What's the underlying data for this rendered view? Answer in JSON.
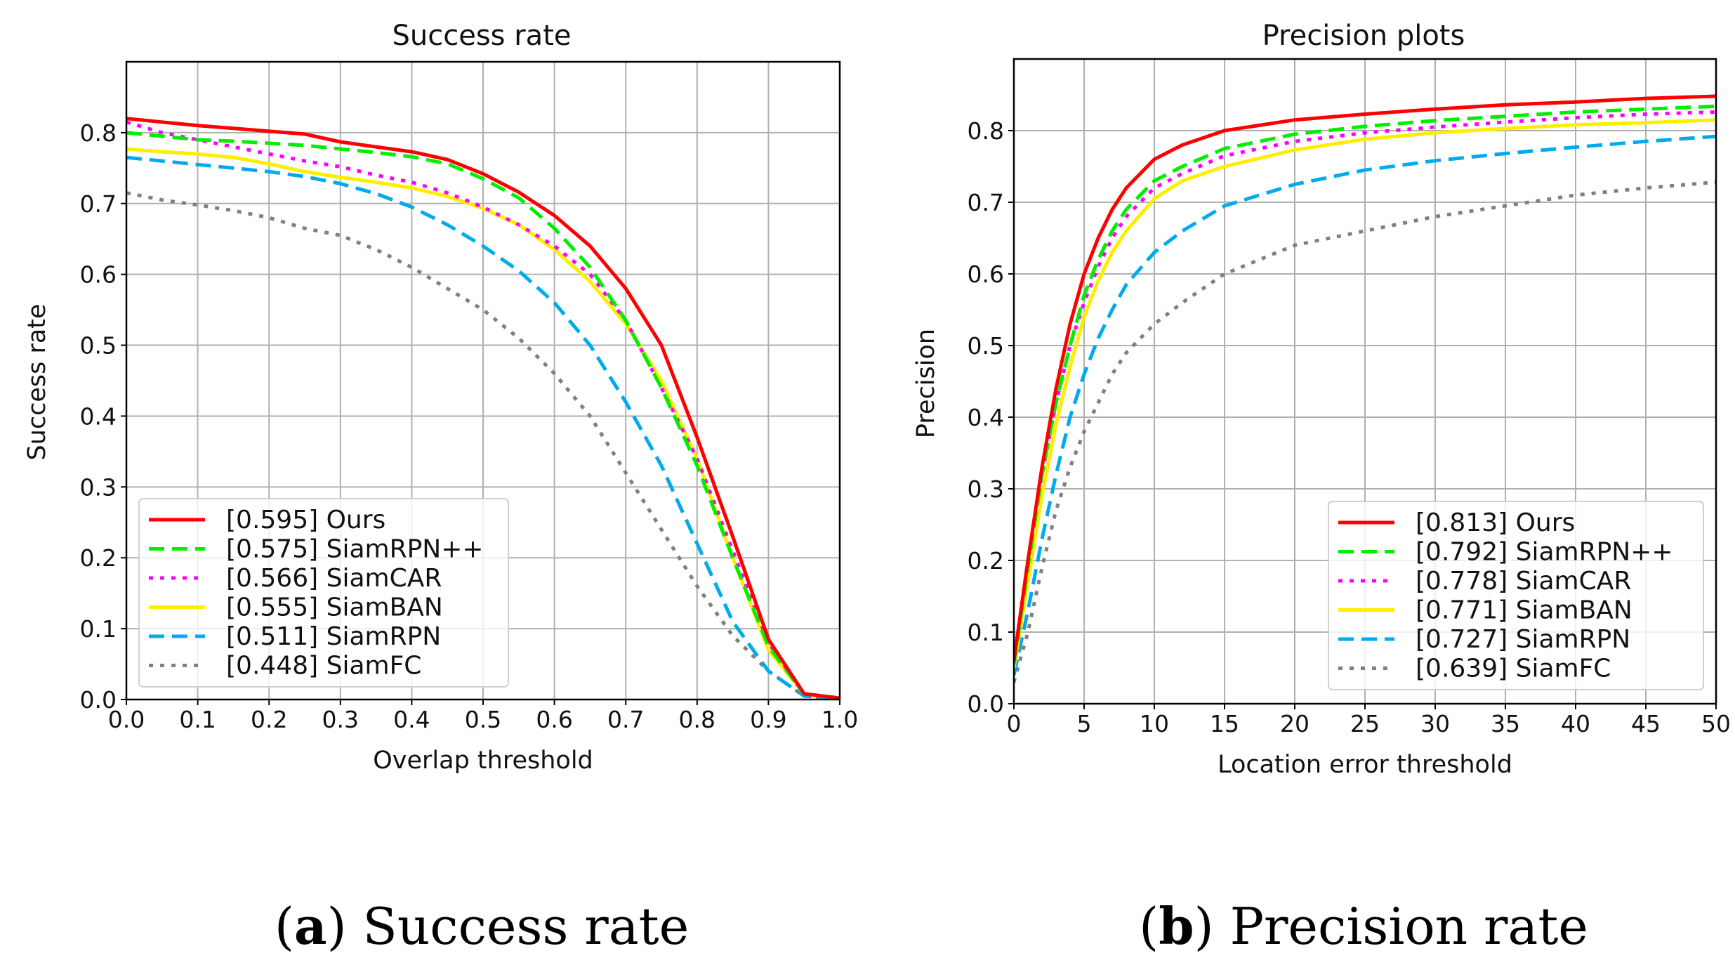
{
  "chart_data": [
    {
      "type": "line",
      "title": "Success rate",
      "xlabel": "Overlap threshold",
      "ylabel": "Success rate",
      "caption_letter": "a",
      "caption_text": "Success rate",
      "xlim": [
        0,
        1
      ],
      "ylim": [
        0,
        0.9
      ],
      "xticks": [
        "0.0",
        "0.1",
        "0.2",
        "0.3",
        "0.4",
        "0.5",
        "0.6",
        "0.7",
        "0.8",
        "0.9",
        "1.0"
      ],
      "yticks": [
        "0.0",
        "0.1",
        "0.2",
        "0.3",
        "0.4",
        "0.5",
        "0.6",
        "0.7",
        "0.8"
      ],
      "grid": true,
      "legend_position": "lower-left",
      "x": [
        0,
        0.05,
        0.1,
        0.15,
        0.2,
        0.25,
        0.3,
        0.35,
        0.4,
        0.45,
        0.5,
        0.55,
        0.6,
        0.65,
        0.7,
        0.75,
        0.8,
        0.85,
        0.9,
        0.95,
        1.0
      ],
      "series": [
        {
          "name": "[0.595] Ours",
          "color": "#ff0000",
          "style": "solid",
          "values": [
            0.82,
            0.815,
            0.81,
            0.806,
            0.802,
            0.798,
            0.787,
            0.78,
            0.773,
            0.762,
            0.742,
            0.716,
            0.683,
            0.64,
            0.58,
            0.5,
            0.37,
            0.23,
            0.085,
            0.008,
            0.002
          ]
        },
        {
          "name": "[0.575] SiamRPN++",
          "color": "#00ee00",
          "style": "dashed",
          "values": [
            0.8,
            0.795,
            0.79,
            0.788,
            0.785,
            0.782,
            0.777,
            0.772,
            0.766,
            0.756,
            0.735,
            0.708,
            0.665,
            0.61,
            0.535,
            0.44,
            0.33,
            0.2,
            0.075,
            0.008,
            0.002
          ]
        },
        {
          "name": "[0.566] SiamCAR",
          "color": "#ff00ff",
          "style": "dotted",
          "values": [
            0.815,
            0.8,
            0.79,
            0.78,
            0.77,
            0.76,
            0.752,
            0.74,
            0.73,
            0.715,
            0.695,
            0.67,
            0.64,
            0.6,
            0.535,
            0.44,
            0.34,
            0.21,
            0.08,
            0.008,
            0.002
          ]
        },
        {
          "name": "[0.555] SiamBAN",
          "color": "#ffee00",
          "style": "solid",
          "values": [
            0.777,
            0.773,
            0.77,
            0.765,
            0.756,
            0.745,
            0.737,
            0.73,
            0.722,
            0.71,
            0.693,
            0.67,
            0.635,
            0.59,
            0.53,
            0.45,
            0.34,
            0.2,
            0.07,
            0.008,
            0.002
          ]
        },
        {
          "name": "[0.511] SiamRPN",
          "color": "#00aaee",
          "style": "dashed",
          "values": [
            0.765,
            0.76,
            0.755,
            0.75,
            0.745,
            0.738,
            0.728,
            0.714,
            0.695,
            0.67,
            0.64,
            0.605,
            0.56,
            0.5,
            0.42,
            0.33,
            0.22,
            0.11,
            0.04,
            0.005,
            0.001
          ]
        },
        {
          "name": "[0.448] SiamFC",
          "color": "#808080",
          "style": "dotted",
          "values": [
            0.715,
            0.705,
            0.698,
            0.69,
            0.68,
            0.665,
            0.655,
            0.635,
            0.61,
            0.58,
            0.55,
            0.51,
            0.46,
            0.4,
            0.32,
            0.24,
            0.16,
            0.09,
            0.04,
            0.005,
            0.001
          ]
        }
      ]
    },
    {
      "type": "line",
      "title": "Precision plots",
      "xlabel": "Location error threshold",
      "ylabel": "Precision",
      "caption_letter": "b",
      "caption_text": "Precision rate",
      "xlim": [
        0,
        50
      ],
      "ylim": [
        0,
        0.9
      ],
      "xticks": [
        "0",
        "5",
        "10",
        "15",
        "20",
        "25",
        "30",
        "35",
        "40",
        "45",
        "50"
      ],
      "yticks": [
        "0.0",
        "0.1",
        "0.2",
        "0.3",
        "0.4",
        "0.5",
        "0.6",
        "0.7",
        "0.8"
      ],
      "grid": true,
      "legend_position": "lower-right",
      "x": [
        0,
        1,
        2,
        3,
        4,
        5,
        6,
        7,
        8,
        10,
        12,
        15,
        20,
        25,
        30,
        35,
        40,
        45,
        50
      ],
      "series": [
        {
          "name": "[0.813] Ours",
          "color": "#ff0000",
          "style": "solid",
          "values": [
            0.06,
            0.2,
            0.33,
            0.44,
            0.53,
            0.6,
            0.65,
            0.69,
            0.72,
            0.76,
            0.78,
            0.8,
            0.815,
            0.823,
            0.83,
            0.836,
            0.84,
            0.845,
            0.848
          ]
        },
        {
          "name": "[0.792] SiamRPN++",
          "color": "#00ee00",
          "style": "dashed",
          "values": [
            0.055,
            0.19,
            0.32,
            0.42,
            0.5,
            0.57,
            0.62,
            0.66,
            0.69,
            0.73,
            0.75,
            0.775,
            0.795,
            0.806,
            0.814,
            0.82,
            0.826,
            0.83,
            0.834
          ]
        },
        {
          "name": "[0.778] SiamCAR",
          "color": "#ff00ff",
          "style": "dotted",
          "values": [
            0.06,
            0.2,
            0.32,
            0.42,
            0.5,
            0.56,
            0.61,
            0.65,
            0.68,
            0.72,
            0.74,
            0.765,
            0.785,
            0.797,
            0.805,
            0.812,
            0.818,
            0.823,
            0.826
          ]
        },
        {
          "name": "[0.771] SiamBAN",
          "color": "#ffee00",
          "style": "solid",
          "values": [
            0.05,
            0.17,
            0.29,
            0.39,
            0.47,
            0.54,
            0.59,
            0.63,
            0.66,
            0.705,
            0.73,
            0.75,
            0.773,
            0.788,
            0.797,
            0.803,
            0.808,
            0.811,
            0.815
          ]
        },
        {
          "name": "[0.727] SiamRPN",
          "color": "#00aaee",
          "style": "dashed",
          "values": [
            0.04,
            0.13,
            0.23,
            0.32,
            0.4,
            0.46,
            0.51,
            0.55,
            0.585,
            0.63,
            0.66,
            0.695,
            0.725,
            0.745,
            0.758,
            0.768,
            0.777,
            0.785,
            0.792
          ]
        },
        {
          "name": "[0.639] SiamFC",
          "color": "#808080",
          "style": "dotted",
          "values": [
            0.03,
            0.1,
            0.19,
            0.27,
            0.33,
            0.38,
            0.42,
            0.46,
            0.49,
            0.53,
            0.56,
            0.6,
            0.64,
            0.66,
            0.68,
            0.695,
            0.71,
            0.72,
            0.728
          ]
        }
      ]
    }
  ]
}
